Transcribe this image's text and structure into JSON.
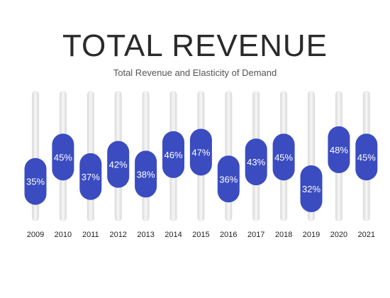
{
  "title": "TOTAL REVENUE",
  "subtitle": "Total Revenue and Elasticity of Demand",
  "colors": {
    "pill": "#3a4cc0",
    "track": "#e6e6e6",
    "label": "#ffffff",
    "year": "#222222"
  },
  "chart_data": {
    "type": "bar",
    "title": "TOTAL REVENUE",
    "subtitle": "Total Revenue and Elasticity of Demand",
    "categories": [
      "2009",
      "2010",
      "2011",
      "2012",
      "2013",
      "2014",
      "2015",
      "2016",
      "2017",
      "2018",
      "2019",
      "2020",
      "2021"
    ],
    "values": [
      35,
      45,
      37,
      42,
      38,
      46,
      47,
      36,
      43,
      45,
      32,
      48,
      45
    ],
    "value_labels": [
      "35%",
      "45%",
      "37%",
      "42%",
      "38%",
      "46%",
      "47%",
      "36%",
      "43%",
      "45%",
      "32%",
      "48%",
      "45%"
    ],
    "grid": false,
    "legend": "none"
  }
}
